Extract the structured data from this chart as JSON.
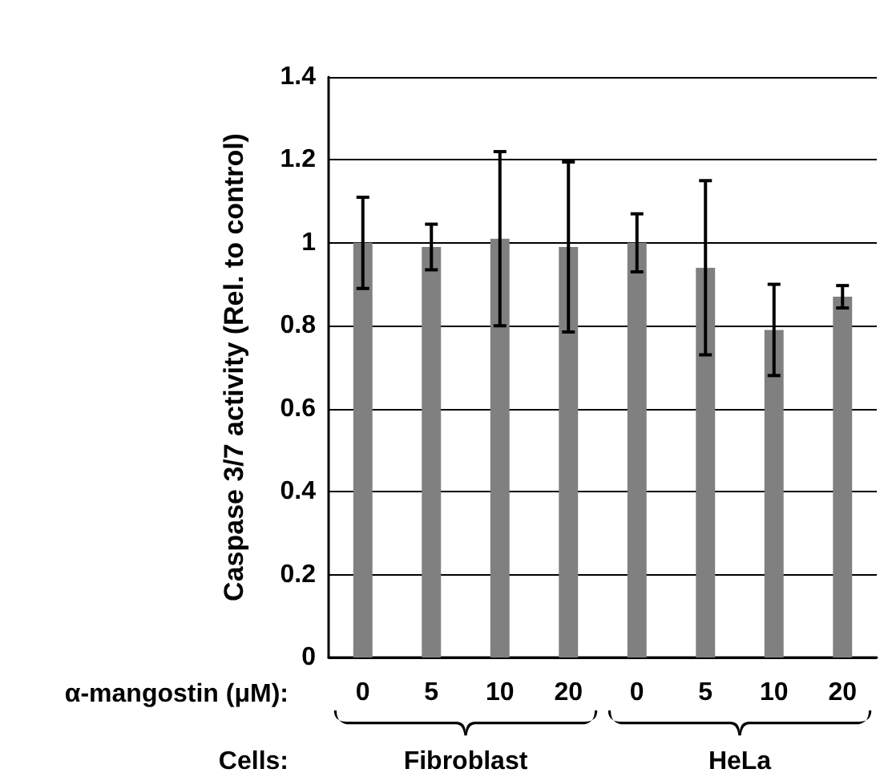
{
  "chart_data": {
    "type": "bar",
    "ylabel": "Caspase 3/7 activity (Rel. to control)",
    "xlabel": "α-mangostin (μM):",
    "categories": [
      "0",
      "5",
      "10",
      "20",
      "0",
      "5",
      "10",
      "20"
    ],
    "values": [
      1.0,
      0.99,
      1.01,
      0.99,
      1.0,
      0.94,
      0.79,
      0.87
    ],
    "errors": [
      0.11,
      0.055,
      0.21,
      0.205,
      0.07,
      0.21,
      0.11,
      0.027
    ],
    "color": "#808080",
    "ylim": [
      0,
      1.4
    ],
    "yticks": [
      0,
      0.2,
      0.4,
      0.6,
      0.8,
      1,
      1.2,
      1.4
    ],
    "grid": "y",
    "annotations": [
      "Cells:",
      "Fibroblast",
      "HeLa"
    ]
  }
}
